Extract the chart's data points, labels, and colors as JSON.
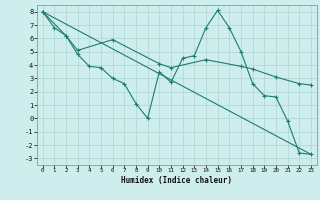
{
  "xlabel": "Humidex (Indice chaleur)",
  "background_color": "#ceeeed",
  "line_color": "#1e7c6e",
  "grid_color": "#aed4d0",
  "xlim": [
    -0.5,
    23.5
  ],
  "ylim": [
    -3.5,
    8.5
  ],
  "xticks": [
    0,
    1,
    2,
    3,
    4,
    5,
    6,
    7,
    8,
    9,
    10,
    11,
    12,
    13,
    14,
    15,
    16,
    17,
    18,
    19,
    20,
    21,
    22,
    23
  ],
  "yticks": [
    -3,
    -2,
    -1,
    0,
    1,
    2,
    3,
    4,
    5,
    6,
    7,
    8
  ],
  "line1_x": [
    0,
    1,
    2,
    3,
    4,
    5,
    6,
    7,
    8,
    9,
    10,
    11,
    12,
    13,
    14,
    15,
    16,
    17,
    18,
    19,
    20,
    21,
    22,
    23
  ],
  "line1_y": [
    8.0,
    6.8,
    6.2,
    4.8,
    3.9,
    3.8,
    3.0,
    2.6,
    1.1,
    0.0,
    3.5,
    2.7,
    4.5,
    4.7,
    6.8,
    8.1,
    6.8,
    5.0,
    2.6,
    1.7,
    1.6,
    -0.2,
    -2.6,
    -2.7
  ],
  "line2_x": [
    0,
    2,
    3,
    6,
    10,
    11,
    14,
    17,
    18,
    20,
    22,
    23
  ],
  "line2_y": [
    8.0,
    6.2,
    5.1,
    5.9,
    4.1,
    3.8,
    4.4,
    3.9,
    3.7,
    3.1,
    2.6,
    2.5
  ],
  "line3_x": [
    0,
    23
  ],
  "line3_y": [
    8.0,
    -2.7
  ]
}
